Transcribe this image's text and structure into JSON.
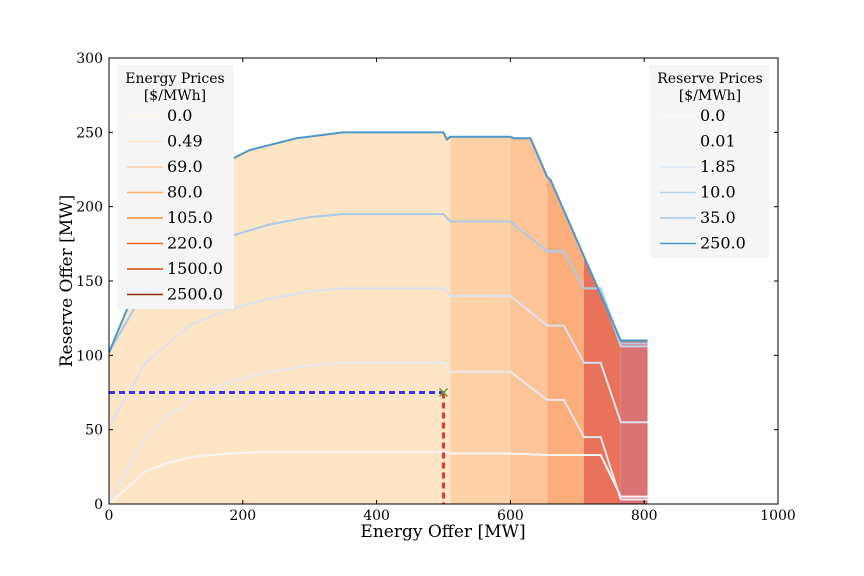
{
  "chart_data": {
    "type": "area",
    "xlabel": "Energy Offer [MW]",
    "ylabel": "Reserve Offer [MW]",
    "xlim": [
      0,
      1000
    ],
    "ylim": [
      0,
      300
    ],
    "xticks": [
      "0",
      "200",
      "400",
      "600",
      "800",
      "1000"
    ],
    "yticks": [
      "0",
      "50",
      "100",
      "150",
      "200",
      "250",
      "300"
    ],
    "grid": false,
    "energy_legend": {
      "title": [
        "Energy Prices",
        "[$/MWh]"
      ],
      "placement": "upper-left",
      "entries": [
        {
          "label": "0.0",
          "color": "#fff5eb"
        },
        {
          "label": "0.49",
          "color": "#fee6ce"
        },
        {
          "label": "69.0",
          "color": "#fdd0a2"
        },
        {
          "label": "80.0",
          "color": "#fdae6b"
        },
        {
          "label": "105.0",
          "color": "#fd8d3c"
        },
        {
          "label": "220.0",
          "color": "#f16913"
        },
        {
          "label": "1500.0",
          "color": "#d94801"
        },
        {
          "label": "2500.0",
          "color": "#8c2d04"
        }
      ]
    },
    "reserve_legend": {
      "title": [
        "Reserve Prices",
        "[$/MWh]"
      ],
      "placement": "upper-right",
      "entries": [
        {
          "label": "0.0",
          "color": "#f7fbff"
        },
        {
          "label": "0.01",
          "color": "#f0f6fc"
        },
        {
          "label": "1.85",
          "color": "#dbe9f6"
        },
        {
          "label": "10.0",
          "color": "#bad6eb"
        },
        {
          "label": "35.0",
          "color": "#a6cbe3"
        },
        {
          "label": "250.0",
          "color": "#4a98c9"
        }
      ]
    },
    "energy_regions": [
      {
        "x0": 0,
        "x1": 510,
        "color": "#fde5c6"
      },
      {
        "x0": 510,
        "x1": 600,
        "color": "#fdd2a6"
      },
      {
        "x0": 600,
        "x1": 655,
        "color": "#fdc597"
      },
      {
        "x0": 655,
        "x1": 710,
        "color": "#fbad7c"
      },
      {
        "x0": 710,
        "x1": 765,
        "color": "#e8735a"
      },
      {
        "x0": 765,
        "x1": 805,
        "color": "#d97272"
      }
    ],
    "reserve_curves": [
      {
        "label": "0.0",
        "color": "#f7f4f2",
        "width": 2,
        "points": [
          [
            0,
            0
          ],
          [
            55,
            22
          ],
          [
            90,
            28
          ],
          [
            130,
            32
          ],
          [
            180,
            34
          ],
          [
            230,
            35
          ],
          [
            300,
            35
          ],
          [
            350,
            35
          ],
          [
            500,
            35
          ],
          [
            510,
            34
          ],
          [
            600,
            34
          ],
          [
            655,
            33
          ],
          [
            710,
            33
          ],
          [
            735,
            33
          ],
          [
            765,
            5
          ],
          [
            805,
            5
          ]
        ]
      },
      {
        "label": "0.01",
        "color": "#e8e8ea",
        "width": 2,
        "points": [
          [
            0,
            2
          ],
          [
            55,
            45
          ],
          [
            90,
            60
          ],
          [
            130,
            72
          ],
          [
            180,
            82
          ],
          [
            240,
            89
          ],
          [
            300,
            93
          ],
          [
            350,
            95
          ],
          [
            500,
            95
          ],
          [
            510,
            89
          ],
          [
            600,
            89
          ],
          [
            655,
            70
          ],
          [
            680,
            70
          ],
          [
            710,
            45
          ],
          [
            735,
            45
          ],
          [
            765,
            3
          ],
          [
            805,
            3
          ]
        ]
      },
      {
        "label": "1.85",
        "color": "#dbe4ee",
        "width": 2,
        "points": [
          [
            0,
            52
          ],
          [
            55,
            95
          ],
          [
            120,
            120
          ],
          [
            180,
            131
          ],
          [
            240,
            138
          ],
          [
            300,
            143
          ],
          [
            350,
            145
          ],
          [
            500,
            145
          ],
          [
            510,
            140
          ],
          [
            600,
            140
          ],
          [
            655,
            120
          ],
          [
            680,
            120
          ],
          [
            710,
            95
          ],
          [
            735,
            95
          ],
          [
            765,
            55
          ],
          [
            805,
            55
          ]
        ]
      },
      {
        "label": "10.0",
        "color": "#bcd6ea",
        "width": 2,
        "points": [
          [
            0,
            102
          ],
          [
            55,
            145
          ],
          [
            120,
            167
          ],
          [
            180,
            180
          ],
          [
            240,
            188
          ],
          [
            300,
            193
          ],
          [
            350,
            195
          ],
          [
            500,
            195
          ],
          [
            510,
            190
          ],
          [
            600,
            190
          ],
          [
            655,
            170
          ],
          [
            680,
            170
          ],
          [
            710,
            145
          ],
          [
            735,
            145
          ],
          [
            765,
            106
          ],
          [
            805,
            106
          ]
        ]
      },
      {
        "label": "35.0",
        "color": "#aacbe3",
        "width": 2,
        "points": [
          [
            0,
            102
          ],
          [
            55,
            145
          ],
          [
            120,
            167
          ],
          [
            180,
            180
          ],
          [
            240,
            188
          ],
          [
            300,
            193
          ],
          [
            350,
            195
          ],
          [
            500,
            195
          ],
          [
            510,
            190
          ],
          [
            600,
            190
          ],
          [
            655,
            170
          ],
          [
            680,
            170
          ],
          [
            710,
            145
          ],
          [
            735,
            145
          ],
          [
            765,
            108
          ],
          [
            805,
            108
          ]
        ]
      },
      {
        "label": "250.0",
        "color": "#4a98c9",
        "width": 2,
        "points": [
          [
            0,
            102
          ],
          [
            40,
            145
          ],
          [
            80,
            190
          ],
          [
            140,
            222
          ],
          [
            210,
            238
          ],
          [
            280,
            246
          ],
          [
            350,
            250
          ],
          [
            500,
            250
          ],
          [
            505,
            245
          ],
          [
            510,
            247
          ],
          [
            600,
            247
          ],
          [
            605,
            246
          ],
          [
            630,
            246
          ],
          [
            655,
            220
          ],
          [
            660,
            218
          ],
          [
            765,
            110
          ],
          [
            805,
            110
          ]
        ]
      }
    ],
    "operating_point": {
      "x": 500,
      "y": 75,
      "marker": "x",
      "marker_color": "#5aa02c",
      "hline_color": "#3333ee",
      "vline_color": "#ee3333"
    }
  }
}
